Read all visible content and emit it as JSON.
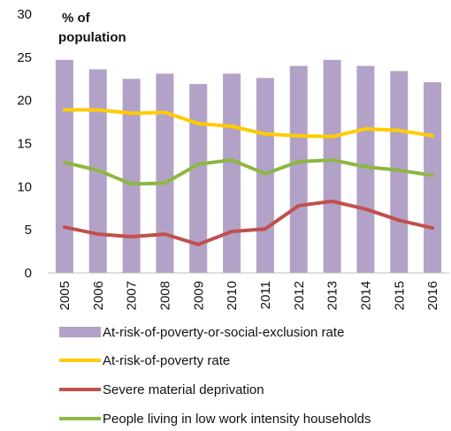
{
  "chart_data": {
    "type": "bar",
    "unit_label_line1": "% of",
    "unit_label_line2": "population",
    "categories": [
      "2005",
      "2006",
      "2007",
      "2008",
      "2009",
      "2010",
      "2011",
      "2012",
      "2013",
      "2014",
      "2015",
      "2016"
    ],
    "ylim": [
      0,
      30
    ],
    "yticks": [
      0,
      5,
      10,
      15,
      20,
      25,
      30
    ],
    "grid": false,
    "legend_position": "bottom",
    "series": [
      {
        "name": "At-risk-of-poverty-or-social-exclusion rate",
        "kind": "bar",
        "color": "#b3a2c7",
        "values": [
          24.7,
          23.6,
          22.5,
          23.1,
          21.9,
          23.1,
          22.6,
          24.0,
          24.7,
          24.0,
          23.4,
          22.1
        ]
      },
      {
        "name": "At-risk-of-poverty rate",
        "kind": "line",
        "color": "#ffcc00",
        "values": [
          18.9,
          18.9,
          18.5,
          18.6,
          17.3,
          17.0,
          16.1,
          15.9,
          15.8,
          16.7,
          16.5,
          15.9
        ]
      },
      {
        "name": "Severe material deprivation",
        "kind": "line",
        "color": "#c0504d",
        "values": [
          5.3,
          4.5,
          4.2,
          4.5,
          3.3,
          4.8,
          5.1,
          7.8,
          8.3,
          7.4,
          6.1,
          5.2
        ]
      },
      {
        "name": "People living in low work intensity households",
        "kind": "line",
        "color": "#8db742",
        "values": [
          12.8,
          11.9,
          10.3,
          10.4,
          12.6,
          13.1,
          11.5,
          12.9,
          13.1,
          12.3,
          11.9,
          11.3
        ]
      }
    ]
  }
}
